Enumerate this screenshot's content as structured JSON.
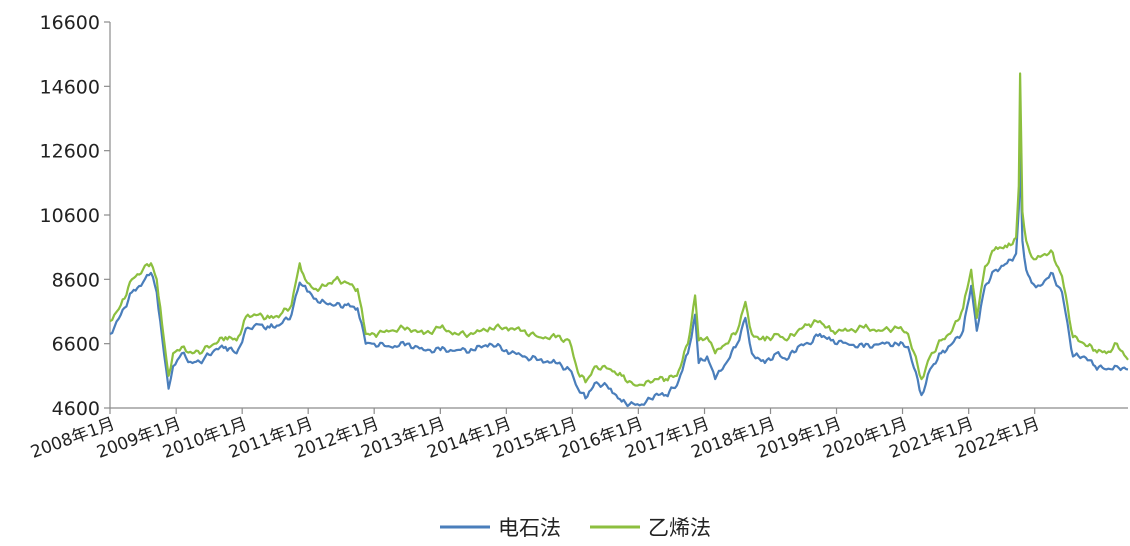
{
  "chart_data": {
    "type": "line",
    "title": "",
    "xlabel": "",
    "ylabel": "",
    "ylim": [
      4600,
      16600
    ],
    "yticks": [
      4600,
      6600,
      8600,
      10600,
      12600,
      14600,
      16600
    ],
    "xlim": [
      "2008-01-01",
      "2023-06-01"
    ],
    "xticks": [
      {
        "date": "2008-01-01",
        "label": "2008年1月"
      },
      {
        "date": "2009-01-01",
        "label": "2009年1月"
      },
      {
        "date": "2010-01-01",
        "label": "2010年1月"
      },
      {
        "date": "2011-01-01",
        "label": "2011年1月"
      },
      {
        "date": "2012-01-01",
        "label": "2012年1月"
      },
      {
        "date": "2013-01-01",
        "label": "2013年1月"
      },
      {
        "date": "2014-01-01",
        "label": "2014年1月"
      },
      {
        "date": "2015-01-01",
        "label": "2015年1月"
      },
      {
        "date": "2016-01-01",
        "label": "2016年1月"
      },
      {
        "date": "2017-01-01",
        "label": "2017年1月"
      },
      {
        "date": "2018-01-01",
        "label": "2018年1月"
      },
      {
        "date": "2019-01-01",
        "label": "2019年1月"
      },
      {
        "date": "2020-01-01",
        "label": "2020年1月"
      },
      {
        "date": "2021-01-01",
        "label": "2021年1月"
      },
      {
        "date": "2022-01-01",
        "label": "2022年1月"
      }
    ],
    "grid": false,
    "legend_position": "bottom",
    "series": [
      {
        "name": "电石法",
        "color": "#4a7ebb",
        "points": [
          [
            "2008-01-01",
            6900
          ],
          [
            "2008-03-01",
            7500
          ],
          [
            "2008-05-01",
            8200
          ],
          [
            "2008-07-01",
            8500
          ],
          [
            "2008-08-15",
            8800
          ],
          [
            "2008-09-15",
            8200
          ],
          [
            "2008-10-15",
            6800
          ],
          [
            "2008-11-20",
            5200
          ],
          [
            "2008-12-15",
            5900
          ],
          [
            "2009-02-01",
            6300
          ],
          [
            "2009-04-01",
            6000
          ],
          [
            "2009-06-01",
            6100
          ],
          [
            "2009-08-01",
            6400
          ],
          [
            "2009-10-01",
            6500
          ],
          [
            "2009-12-01",
            6300
          ],
          [
            "2010-02-01",
            7100
          ],
          [
            "2010-04-01",
            7200
          ],
          [
            "2010-06-01",
            7100
          ],
          [
            "2010-08-01",
            7200
          ],
          [
            "2010-10-01",
            7500
          ],
          [
            "2010-11-15",
            8500
          ],
          [
            "2010-12-15",
            8400
          ],
          [
            "2011-02-01",
            8000
          ],
          [
            "2011-04-01",
            7900
          ],
          [
            "2011-06-01",
            7800
          ],
          [
            "2011-08-01",
            7800
          ],
          [
            "2011-10-01",
            7700
          ],
          [
            "2011-11-15",
            6600
          ],
          [
            "2012-01-01",
            6600
          ],
          [
            "2012-04-01",
            6500
          ],
          [
            "2012-07-01",
            6600
          ],
          [
            "2012-10-01",
            6400
          ],
          [
            "2013-01-01",
            6400
          ],
          [
            "2013-04-01",
            6400
          ],
          [
            "2013-07-01",
            6400
          ],
          [
            "2013-10-01",
            6600
          ],
          [
            "2014-01-01",
            6400
          ],
          [
            "2014-04-01",
            6200
          ],
          [
            "2014-07-01",
            6100
          ],
          [
            "2014-10-01",
            6000
          ],
          [
            "2014-12-15",
            5800
          ],
          [
            "2015-02-01",
            5200
          ],
          [
            "2015-03-15",
            4900
          ],
          [
            "2015-05-15",
            5400
          ],
          [
            "2015-08-01",
            5200
          ],
          [
            "2015-10-01",
            4800
          ],
          [
            "2015-12-15",
            4700
          ],
          [
            "2016-02-01",
            4700
          ],
          [
            "2016-04-01",
            5000
          ],
          [
            "2016-06-01",
            5000
          ],
          [
            "2016-08-01",
            5300
          ],
          [
            "2016-10-01",
            6300
          ],
          [
            "2016-11-10",
            7500
          ],
          [
            "2016-11-30",
            6000
          ],
          [
            "2017-01-15",
            6200
          ],
          [
            "2017-03-01",
            5500
          ],
          [
            "2017-05-01",
            6000
          ],
          [
            "2017-07-01",
            6600
          ],
          [
            "2017-08-15",
            7400
          ],
          [
            "2017-09-20",
            6300
          ],
          [
            "2017-12-01",
            6000
          ],
          [
            "2018-02-01",
            6300
          ],
          [
            "2018-04-01",
            6100
          ],
          [
            "2018-06-01",
            6500
          ],
          [
            "2018-08-01",
            6600
          ],
          [
            "2018-10-01",
            6900
          ],
          [
            "2018-12-01",
            6700
          ],
          [
            "2019-03-01",
            6600
          ],
          [
            "2019-06-01",
            6500
          ],
          [
            "2019-09-01",
            6600
          ],
          [
            "2019-12-01",
            6600
          ],
          [
            "2020-02-01",
            6500
          ],
          [
            "2020-04-15",
            5000
          ],
          [
            "2020-06-01",
            5800
          ],
          [
            "2020-08-01",
            6300
          ],
          [
            "2020-10-01",
            6600
          ],
          [
            "2020-12-01",
            7000
          ],
          [
            "2021-01-15",
            8400
          ],
          [
            "2021-02-15",
            7000
          ],
          [
            "2021-04-01",
            8400
          ],
          [
            "2021-06-01",
            8900
          ],
          [
            "2021-08-01",
            9100
          ],
          [
            "2021-09-20",
            9400
          ],
          [
            "2021-10-05",
            10800
          ],
          [
            "2021-10-12",
            12600
          ],
          [
            "2021-10-25",
            9800
          ],
          [
            "2021-11-15",
            8900
          ],
          [
            "2021-12-15",
            8500
          ],
          [
            "2022-02-01",
            8400
          ],
          [
            "2022-04-01",
            8800
          ],
          [
            "2022-06-01",
            8200
          ],
          [
            "2022-08-01",
            6200
          ],
          [
            "2022-10-01",
            6200
          ],
          [
            "2022-12-01",
            5900
          ],
          [
            "2023-02-01",
            5800
          ],
          [
            "2023-04-01",
            5900
          ],
          [
            "2023-06-01",
            5800
          ]
        ]
      },
      {
        "name": "乙烯法",
        "color": "#8cbf3f",
        "points": [
          [
            "2008-01-01",
            7300
          ],
          [
            "2008-03-01",
            7800
          ],
          [
            "2008-05-01",
            8600
          ],
          [
            "2008-07-01",
            8900
          ],
          [
            "2008-08-15",
            9100
          ],
          [
            "2008-09-15",
            8600
          ],
          [
            "2008-10-15",
            7200
          ],
          [
            "2008-11-20",
            5600
          ],
          [
            "2008-12-15",
            6300
          ],
          [
            "2009-02-01",
            6500
          ],
          [
            "2009-04-01",
            6300
          ],
          [
            "2009-06-01",
            6400
          ],
          [
            "2009-08-01",
            6600
          ],
          [
            "2009-10-01",
            6800
          ],
          [
            "2009-12-01",
            6700
          ],
          [
            "2010-02-01",
            7500
          ],
          [
            "2010-04-01",
            7500
          ],
          [
            "2010-06-01",
            7400
          ],
          [
            "2010-08-01",
            7500
          ],
          [
            "2010-10-01",
            7800
          ],
          [
            "2010-11-15",
            9100
          ],
          [
            "2010-12-15",
            8600
          ],
          [
            "2011-02-01",
            8300
          ],
          [
            "2011-04-01",
            8400
          ],
          [
            "2011-06-01",
            8600
          ],
          [
            "2011-08-01",
            8500
          ],
          [
            "2011-10-01",
            8300
          ],
          [
            "2011-11-15",
            6900
          ],
          [
            "2012-01-01",
            6900
          ],
          [
            "2012-04-01",
            7000
          ],
          [
            "2012-07-01",
            7100
          ],
          [
            "2012-10-01",
            6900
          ],
          [
            "2013-01-01",
            7100
          ],
          [
            "2013-04-01",
            6900
          ],
          [
            "2013-07-01",
            6900
          ],
          [
            "2013-10-01",
            7100
          ],
          [
            "2014-01-01",
            7100
          ],
          [
            "2014-04-01",
            7000
          ],
          [
            "2014-07-01",
            6800
          ],
          [
            "2014-10-01",
            6800
          ],
          [
            "2014-12-15",
            6700
          ],
          [
            "2015-02-01",
            5700
          ],
          [
            "2015-03-15",
            5400
          ],
          [
            "2015-05-15",
            5900
          ],
          [
            "2015-08-01",
            5800
          ],
          [
            "2015-10-01",
            5600
          ],
          [
            "2015-12-15",
            5300
          ],
          [
            "2016-02-01",
            5300
          ],
          [
            "2016-04-01",
            5500
          ],
          [
            "2016-06-01",
            5500
          ],
          [
            "2016-08-01",
            5600
          ],
          [
            "2016-10-01",
            6600
          ],
          [
            "2016-11-10",
            8100
          ],
          [
            "2016-11-30",
            6700
          ],
          [
            "2017-01-15",
            6800
          ],
          [
            "2017-03-01",
            6300
          ],
          [
            "2017-05-01",
            6600
          ],
          [
            "2017-07-01",
            7000
          ],
          [
            "2017-08-15",
            7900
          ],
          [
            "2017-09-20",
            6900
          ],
          [
            "2017-12-01",
            6700
          ],
          [
            "2018-02-01",
            6900
          ],
          [
            "2018-04-01",
            6700
          ],
          [
            "2018-06-01",
            7000
          ],
          [
            "2018-08-01",
            7200
          ],
          [
            "2018-10-01",
            7300
          ],
          [
            "2018-12-01",
            7000
          ],
          [
            "2019-03-01",
            7000
          ],
          [
            "2019-06-01",
            7100
          ],
          [
            "2019-09-01",
            7000
          ],
          [
            "2019-12-01",
            7100
          ],
          [
            "2020-02-01",
            6900
          ],
          [
            "2020-04-15",
            5500
          ],
          [
            "2020-06-01",
            6200
          ],
          [
            "2020-08-01",
            6700
          ],
          [
            "2020-10-01",
            7000
          ],
          [
            "2020-12-01",
            7700
          ],
          [
            "2021-01-15",
            8900
          ],
          [
            "2021-02-15",
            7400
          ],
          [
            "2021-04-01",
            9000
          ],
          [
            "2021-06-01",
            9600
          ],
          [
            "2021-08-01",
            9600
          ],
          [
            "2021-09-20",
            9900
          ],
          [
            "2021-10-05",
            11500
          ],
          [
            "2021-10-12",
            15000
          ],
          [
            "2021-10-25",
            10700
          ],
          [
            "2021-11-15",
            9800
          ],
          [
            "2021-12-15",
            9300
          ],
          [
            "2022-02-01",
            9300
          ],
          [
            "2022-04-01",
            9500
          ],
          [
            "2022-06-01",
            8700
          ],
          [
            "2022-08-01",
            6800
          ],
          [
            "2022-10-01",
            6600
          ],
          [
            "2022-12-01",
            6400
          ],
          [
            "2023-02-01",
            6300
          ],
          [
            "2023-04-01",
            6600
          ],
          [
            "2023-06-01",
            6100
          ]
        ]
      }
    ]
  }
}
